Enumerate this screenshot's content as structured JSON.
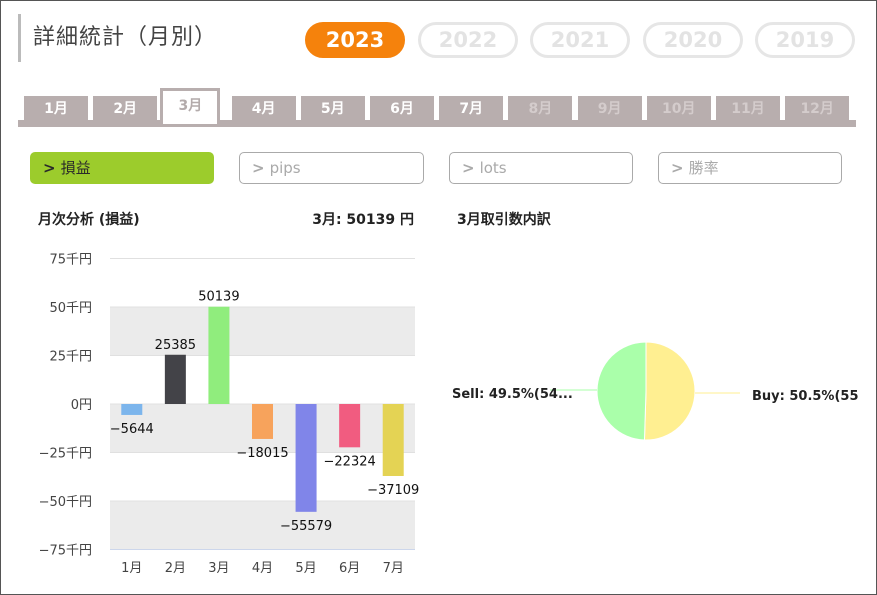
{
  "header": {
    "title": "詳細統計（月別）"
  },
  "years": [
    {
      "label": "2023",
      "active": true
    },
    {
      "label": "2022",
      "active": false
    },
    {
      "label": "2021",
      "active": false
    },
    {
      "label": "2020",
      "active": false
    },
    {
      "label": "2019",
      "active": false
    }
  ],
  "months": [
    "1月",
    "2月",
    "3月",
    "4月",
    "5月",
    "6月",
    "7月",
    "8月",
    "9月",
    "10月",
    "11月",
    "12月"
  ],
  "active_month_index": 2,
  "metrics": [
    {
      "label": "損益",
      "active": true
    },
    {
      "label": "pips",
      "active": false
    },
    {
      "label": "lots",
      "active": false
    },
    {
      "label": "勝率",
      "active": false
    }
  ],
  "chevron": ">",
  "left_panel": {
    "title": "月次分析 (損益)",
    "summary": "3月:  50139 円"
  },
  "right_panel": {
    "title": "3月取引数内訳"
  },
  "colors": {
    "accent": "#f5820c",
    "metric_active": "#9ccc2c",
    "tab": "#b8aeae"
  },
  "chart_data": [
    {
      "type": "bar",
      "categories": [
        "1月",
        "2月",
        "3月",
        "4月",
        "5月",
        "6月",
        "7月"
      ],
      "values": [
        -5644,
        25385,
        50139,
        -18015,
        -55579,
        -22324,
        -37109
      ],
      "value_labels": [
        "−5644",
        "25385",
        "50139",
        "−18015",
        "−55579",
        "−22324",
        "−37109"
      ],
      "colors": [
        "#7cb5ec",
        "#434348",
        "#90ed7d",
        "#f7a35c",
        "#8085e9",
        "#f15c80",
        "#e4d354"
      ],
      "ylim": [
        -75000,
        75000
      ],
      "yticks": [
        75000,
        50000,
        25000,
        0,
        -25000,
        -50000,
        -75000
      ],
      "ytick_labels": [
        "75千円",
        "50千円",
        "25千円",
        "0円",
        "−25千円",
        "−50千円",
        "−75千円"
      ],
      "bands": true
    },
    {
      "type": "pie",
      "slices": [
        {
          "label": "Buy: 50.5%(55",
          "value": 50.5,
          "color": "#ffef91"
        },
        {
          "label": "Sell: 49.5%(54...",
          "value": 49.5,
          "color": "#aaffaa"
        }
      ]
    }
  ]
}
